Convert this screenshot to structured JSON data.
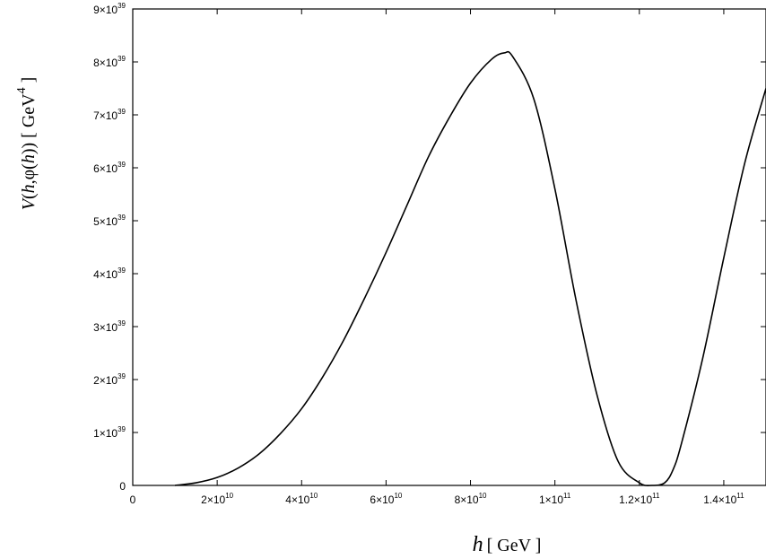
{
  "chart_data": {
    "type": "line",
    "title": "",
    "xlabel": "h [ GeV ]",
    "ylabel": "V(h,φ(h)) [ GeV^4 ]",
    "xlim": [
      0,
      150000000000.0
    ],
    "ylim": [
      0,
      9e+39
    ],
    "grid": false,
    "legend": "none",
    "x_ticks": [
      {
        "value": 0,
        "mantissa": "0",
        "exp": ""
      },
      {
        "value": 20000000000.0,
        "mantissa": "2×10",
        "exp": "10"
      },
      {
        "value": 40000000000.0,
        "mantissa": "4×10",
        "exp": "10"
      },
      {
        "value": 60000000000.0,
        "mantissa": "6×10",
        "exp": "10"
      },
      {
        "value": 80000000000.0,
        "mantissa": "8×10",
        "exp": "10"
      },
      {
        "value": 100000000000.0,
        "mantissa": "1×10",
        "exp": "11"
      },
      {
        "value": 120000000000.0,
        "mantissa": "1.2×10",
        "exp": "11"
      },
      {
        "value": 140000000000.0,
        "mantissa": "1.4×10",
        "exp": "11"
      }
    ],
    "y_ticks": [
      {
        "value": 0,
        "mantissa": "0",
        "exp": ""
      },
      {
        "value": 1e+39,
        "mantissa": "1×10",
        "exp": "39"
      },
      {
        "value": 2e+39,
        "mantissa": "2×10",
        "exp": "39"
      },
      {
        "value": 3e+39,
        "mantissa": "3×10",
        "exp": "39"
      },
      {
        "value": 4e+39,
        "mantissa": "4×10",
        "exp": "39"
      },
      {
        "value": 5e+39,
        "mantissa": "5×10",
        "exp": "39"
      },
      {
        "value": 6e+39,
        "mantissa": "6×10",
        "exp": "39"
      },
      {
        "value": 7e+39,
        "mantissa": "7×10",
        "exp": "39"
      },
      {
        "value": 8e+39,
        "mantissa": "8×10",
        "exp": "39"
      },
      {
        "value": 9e+39,
        "mantissa": "9×10",
        "exp": "39"
      }
    ],
    "series": [
      {
        "color": "#000000",
        "x": [
          10000000000.0,
          15000000000.0,
          20000000000.0,
          25000000000.0,
          30000000000.0,
          35000000000.0,
          40000000000.0,
          45000000000.0,
          50000000000.0,
          55000000000.0,
          60000000000.0,
          65000000000.0,
          70000000000.0,
          75000000000.0,
          80000000000.0,
          85000000000.0,
          88000000000.0,
          90000000000.0,
          95000000000.0,
          100000000000.0,
          105000000000.0,
          110000000000.0,
          115000000000.0,
          120000000000.0,
          123000000000.0,
          126000000000.0,
          128000000000.0,
          130000000000.0,
          135000000000.0,
          140000000000.0,
          145000000000.0,
          150000000000.0
        ],
        "y": [
          0.0,
          5e+37,
          1.5e+38,
          3.3e+38,
          6e+38,
          9.8e+38,
          1.45e+39,
          2.05e+39,
          2.75e+39,
          3.55e+39,
          4.4e+39,
          5.3e+39,
          6.2e+39,
          6.95e+39,
          7.6e+39,
          8.05e+39,
          8.17e+39,
          8.1e+39,
          7.3e+39,
          5.6e+39,
          3.5e+39,
          1.7e+39,
          4.5e+38,
          5e+37,
          0.0,
          5e+37,
          3e+38,
          8e+38,
          2.4e+39,
          4.3e+39,
          6.1e+39,
          7.5e+39
        ]
      }
    ]
  }
}
